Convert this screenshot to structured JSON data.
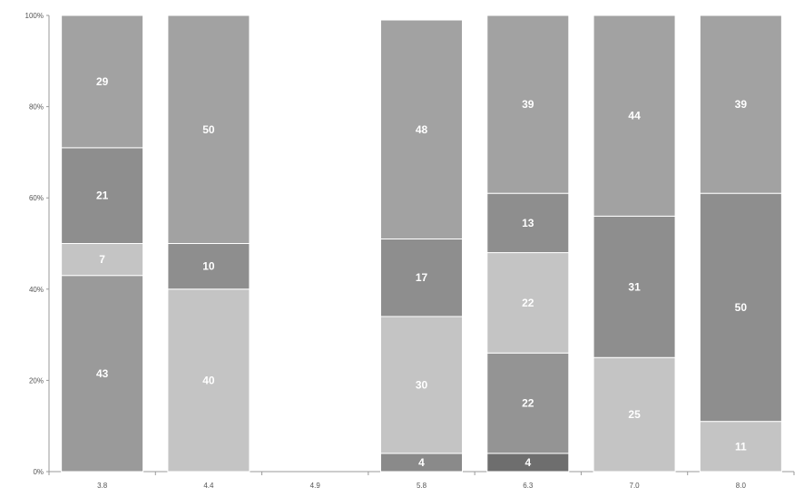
{
  "chart_data": {
    "type": "bar",
    "stacked": true,
    "percent": true,
    "title": "",
    "xlabel": "",
    "ylabel": "",
    "ylim": [
      0,
      100
    ],
    "y_ticks": [
      "0%",
      "20%",
      "40%",
      "60%",
      "80%",
      "100%"
    ],
    "grid": false,
    "categories": [
      "3.8",
      "4.4",
      "4.9",
      "5.8",
      "6.3",
      "7.0",
      "8.0"
    ],
    "bars": [
      {
        "category": "3.8",
        "segments": [
          {
            "value": 43,
            "label": "43",
            "color": "#9a9a9a"
          },
          {
            "value": 7,
            "label": "7",
            "color": "#c4c4c4"
          },
          {
            "value": 21,
            "label": "21",
            "color": "#8e8e8e"
          },
          {
            "value": 29,
            "label": "29",
            "color": "#a2a2a2"
          }
        ]
      },
      {
        "category": "4.4",
        "segments": [
          {
            "value": 40,
            "label": "40",
            "color": "#c4c4c4"
          },
          {
            "value": 10,
            "label": "10",
            "color": "#8e8e8e"
          },
          {
            "value": 50,
            "label": "50",
            "color": "#a2a2a2"
          }
        ]
      },
      {
        "category": "4.9",
        "segments": []
      },
      {
        "category": "5.8",
        "segments": [
          {
            "value": 4,
            "label": "4",
            "color": "#8a8a8a"
          },
          {
            "value": 30,
            "label": "30",
            "color": "#c4c4c4"
          },
          {
            "value": 17,
            "label": "17",
            "color": "#8e8e8e"
          },
          {
            "value": 48,
            "label": "48",
            "color": "#a2a2a2"
          }
        ]
      },
      {
        "category": "6.3",
        "segments": [
          {
            "value": 4,
            "label": "4",
            "color": "#6e6e6e"
          },
          {
            "value": 22,
            "label": "22",
            "color": "#949494"
          },
          {
            "value": 22,
            "label": "22",
            "color": "#c4c4c4"
          },
          {
            "value": 13,
            "label": "13",
            "color": "#8e8e8e"
          },
          {
            "value": 39,
            "label": "39",
            "color": "#a2a2a2"
          }
        ]
      },
      {
        "category": "7.0",
        "segments": [
          {
            "value": 25,
            "label": "25",
            "color": "#c4c4c4"
          },
          {
            "value": 31,
            "label": "31",
            "color": "#8e8e8e"
          },
          {
            "value": 44,
            "label": "44",
            "color": "#a2a2a2"
          }
        ]
      },
      {
        "category": "8.0",
        "segments": [
          {
            "value": 11,
            "label": "11",
            "color": "#c4c4c4"
          },
          {
            "value": 50,
            "label": "50",
            "color": "#8e8e8e"
          },
          {
            "value": 39,
            "label": "39",
            "color": "#a2a2a2"
          }
        ]
      }
    ]
  }
}
